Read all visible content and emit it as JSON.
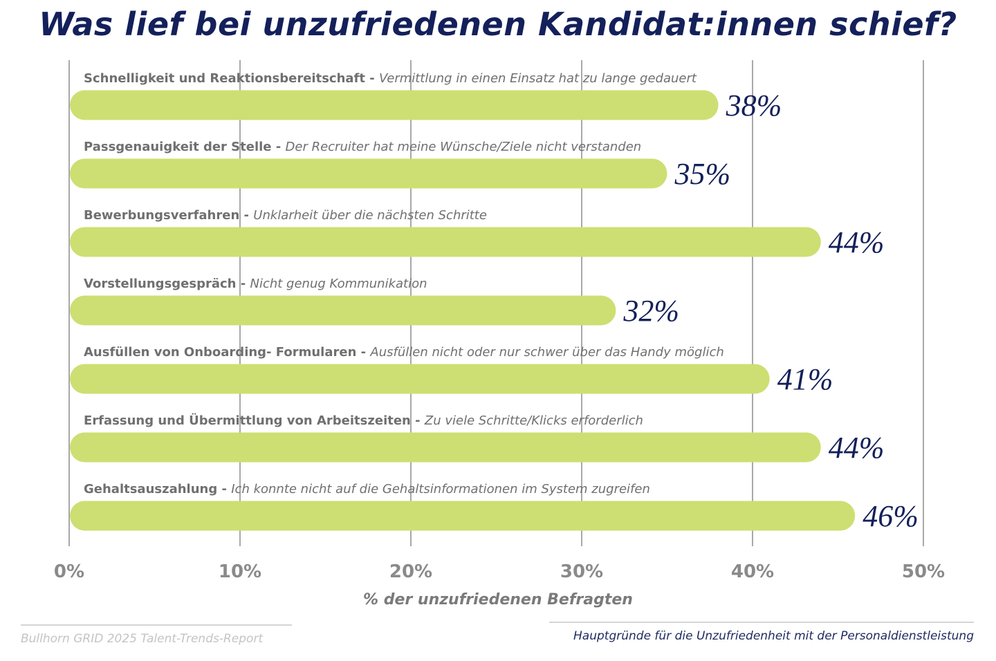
{
  "title": "Was lief bei unzufriedenen Kandidat:innen schief?",
  "chart_data": {
    "type": "bar",
    "orientation": "horizontal",
    "title": "Was lief bei unzufriedenen Kandidat:innen schief?",
    "categories": [
      {
        "bold": "Schnelligkeit und Reaktionsbereitschaft - ",
        "italic": "Vermittlung in einen Einsatz hat zu lange gedauert"
      },
      {
        "bold": "Passgenauigkeit der Stelle - ",
        "italic": "Der Recruiter hat meine Wünsche/Ziele nicht verstanden"
      },
      {
        "bold": "Bewerbungsverfahren - ",
        "italic": "Unklarheit über die nächsten Schritte"
      },
      {
        "bold": "Vorstellungsgespräch - ",
        "italic": "Nicht genug Kommunikation"
      },
      {
        "bold": "Ausfüllen von Onboarding- Formularen - ",
        "italic": "Ausfüllen nicht oder nur schwer über das Handy möglich"
      },
      {
        "bold": "Erfassung und Übermittlung von Arbeitszeiten - ",
        "italic": "Zu viele Schritte/Klicks erforderlich"
      },
      {
        "bold": "Gehaltsauszahlung - ",
        "italic": "Ich konnte nicht auf die Gehaltsinformationen im System zugreifen"
      }
    ],
    "values": [
      38,
      35,
      44,
      32,
      41,
      44,
      46
    ],
    "data_labels": [
      "38%",
      "35%",
      "44%",
      "32%",
      "41%",
      "44%",
      "46%"
    ],
    "xlim": [
      0,
      50
    ],
    "xticks": [
      "0%",
      "10%",
      "20%",
      "30%",
      "40%",
      "50%"
    ],
    "xlabel": "% der unzufriedenen Befragten",
    "ylabel": "",
    "grid": true,
    "bar_color": "#cddf72",
    "label_color": "#14205a"
  },
  "footer": {
    "source": "Bullhorn GRID 2025 Talent-Trends-Report",
    "caption": "Hauptgründe für die Unzufriedenheit mit der Personaldienstleistung"
  }
}
